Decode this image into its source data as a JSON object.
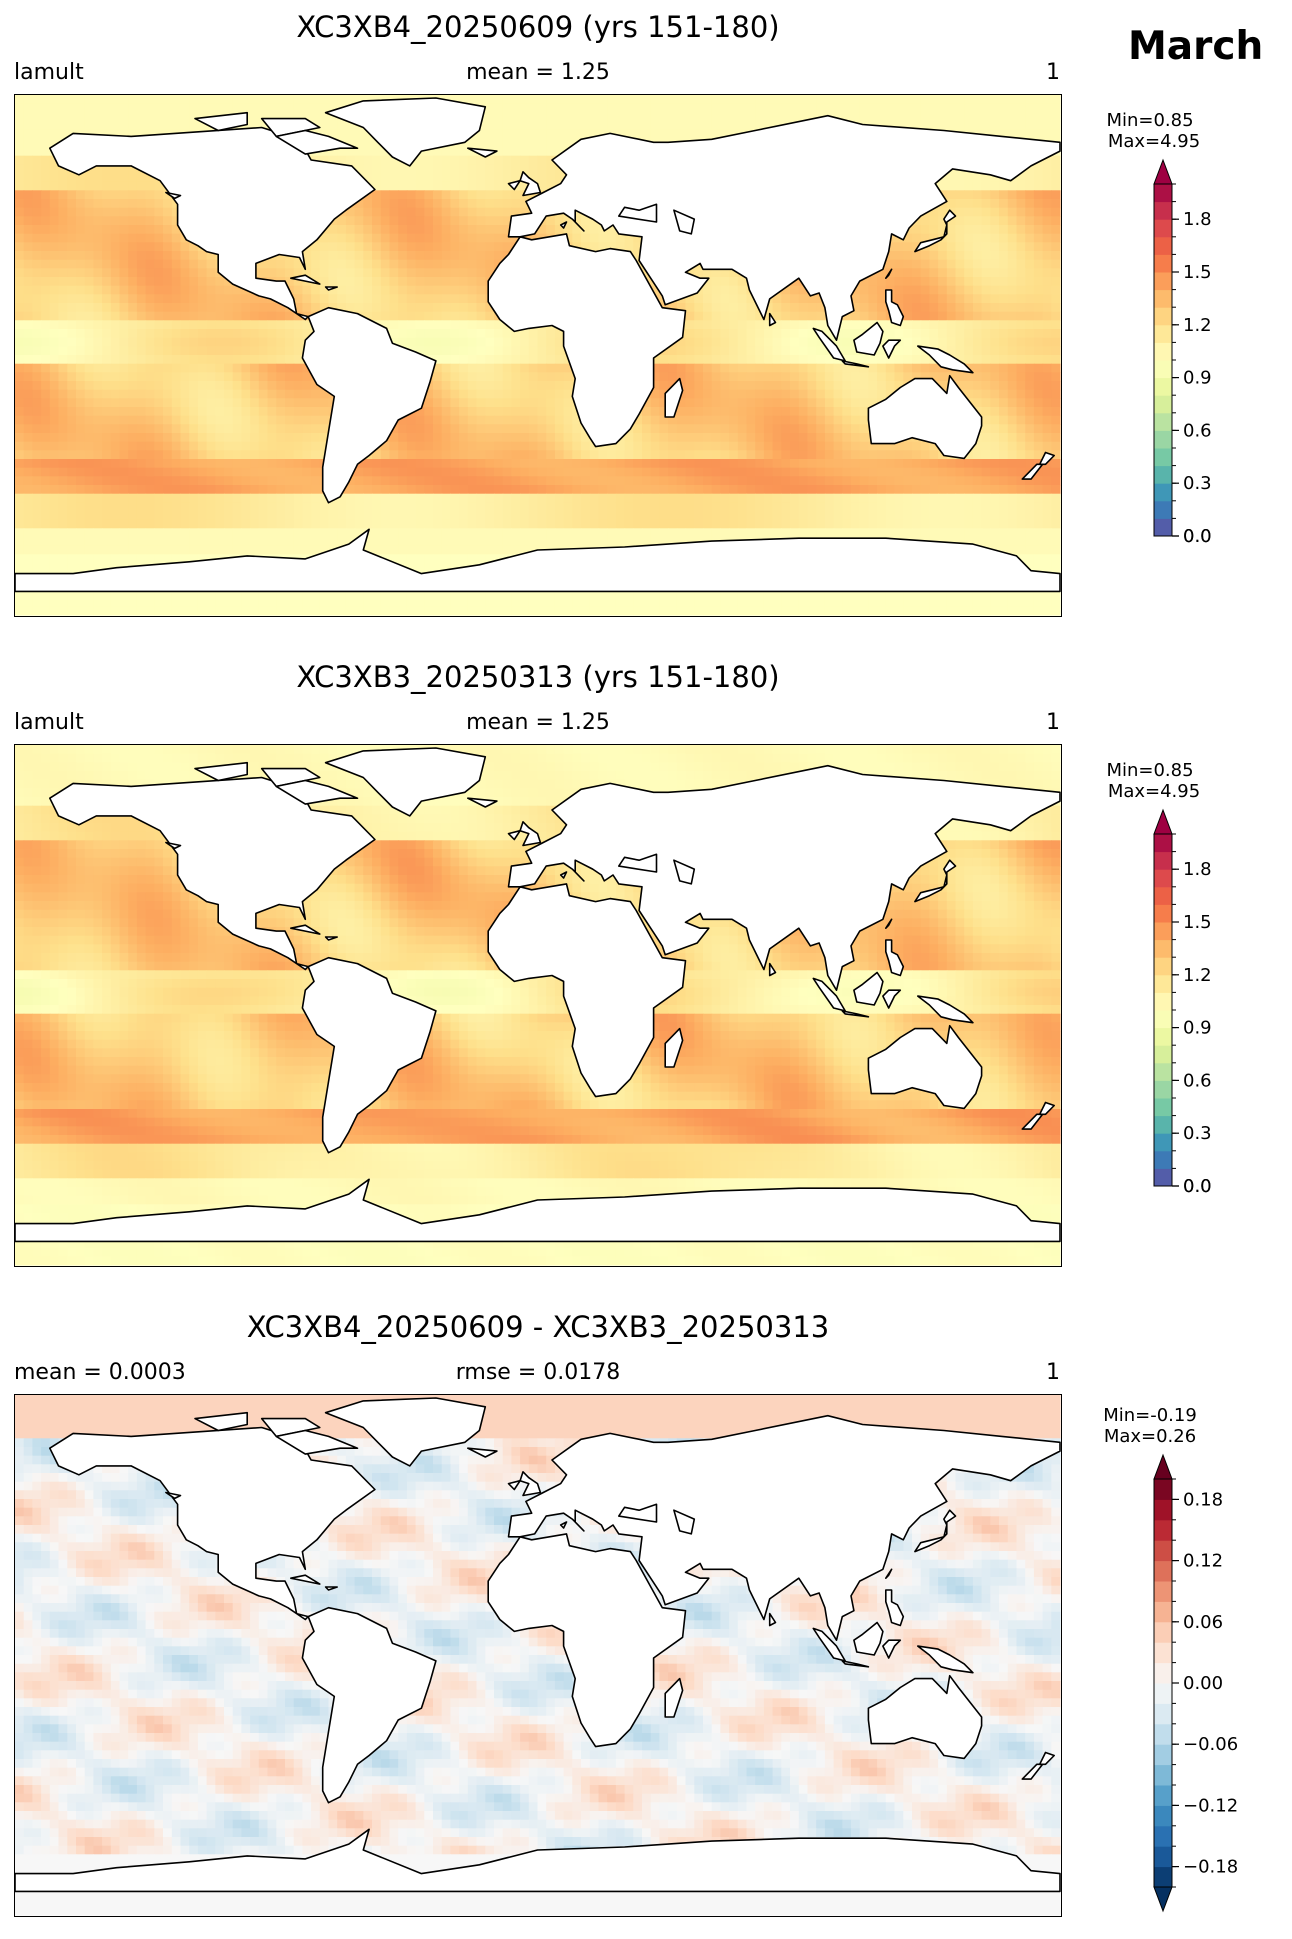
{
  "figure": {
    "month": "March"
  },
  "panels": [
    {
      "title": "XC3XB4_20250609 (yrs 151-180)",
      "left_label": "lamult",
      "center_label": "mean = 1.25",
      "right_label": "1",
      "stats": {
        "min": "Min=0.85",
        "max": "Max=4.95"
      },
      "colorbar": {
        "colormap": "Spectral_r",
        "range": [
          0.0,
          2.0
        ],
        "extend": "max",
        "ticks": [
          "0.0",
          "0.3",
          "0.6",
          "0.9",
          "1.2",
          "1.5",
          "1.8"
        ]
      }
    },
    {
      "title": "XC3XB3_20250313 (yrs 151-180)",
      "left_label": "lamult",
      "center_label": "mean = 1.25",
      "right_label": "1",
      "stats": {
        "min": "Min=0.85",
        "max": "Max=4.95"
      },
      "colorbar": {
        "colormap": "Spectral_r",
        "range": [
          0.0,
          2.0
        ],
        "extend": "max",
        "ticks": [
          "0.0",
          "0.3",
          "0.6",
          "0.9",
          "1.2",
          "1.5",
          "1.8"
        ]
      }
    },
    {
      "title": "XC3XB4_20250609 - XC3XB3_20250313",
      "left_label": "mean = 0.0003",
      "center_label": "rmse = 0.0178",
      "right_label": "1",
      "stats": {
        "min": "Min=-0.19",
        "max": "Max=0.26"
      },
      "colorbar": {
        "colormap": "RdBu_r",
        "range": [
          -0.2,
          0.2
        ],
        "extend": "both",
        "ticks": [
          "−0.18",
          "−0.12",
          "−0.06",
          "0.00",
          "0.06",
          "0.12",
          "0.18"
        ]
      }
    }
  ],
  "chart_data": [
    {
      "type": "heatmap",
      "title": "XC3XB4_20250609 (yrs 151-180)",
      "variable": "lamult",
      "mean": 1.25,
      "min": 0.85,
      "max": 4.95,
      "colorbar_range": [
        0.0,
        2.0
      ],
      "colorbar_ticks": [
        0.0,
        0.3,
        0.6,
        0.9,
        1.2,
        1.5,
        1.8
      ],
      "colormap": "Spectral_r",
      "projection": "global lat-lon map"
    },
    {
      "type": "heatmap",
      "title": "XC3XB3_20250313 (yrs 151-180)",
      "variable": "lamult",
      "mean": 1.25,
      "min": 0.85,
      "max": 4.95,
      "colorbar_range": [
        0.0,
        2.0
      ],
      "colorbar_ticks": [
        0.0,
        0.3,
        0.6,
        0.9,
        1.2,
        1.5,
        1.8
      ],
      "colormap": "Spectral_r",
      "projection": "global lat-lon map"
    },
    {
      "type": "heatmap",
      "title": "XC3XB4_20250609 - XC3XB3_20250313",
      "mean": 0.0003,
      "rmse": 0.0178,
      "min": -0.19,
      "max": 0.26,
      "colorbar_range": [
        -0.2,
        0.2
      ],
      "colorbar_ticks": [
        -0.18,
        -0.12,
        -0.06,
        0.0,
        0.06,
        0.12,
        0.18
      ],
      "colormap": "RdBu_r",
      "projection": "global lat-lon map"
    }
  ]
}
